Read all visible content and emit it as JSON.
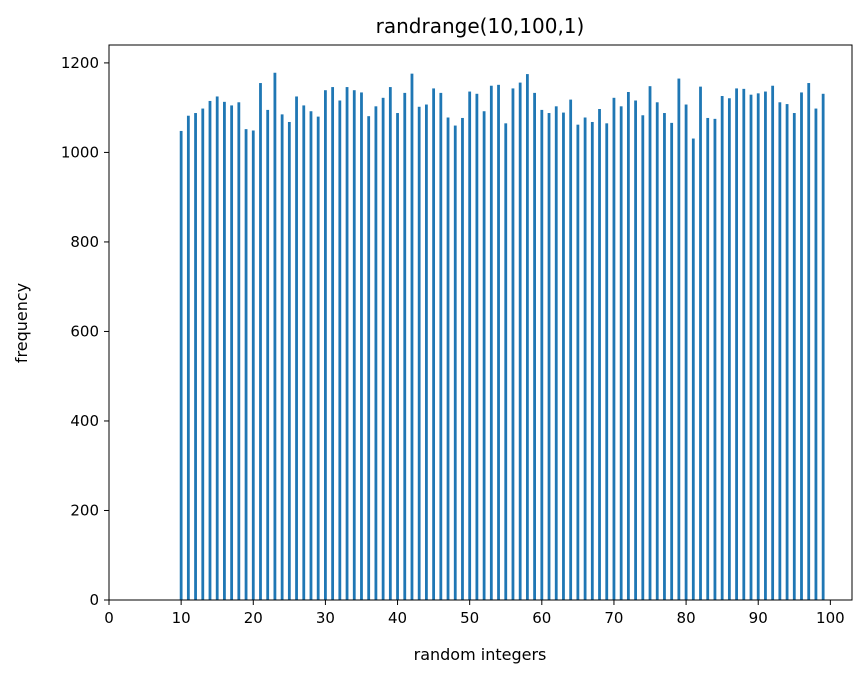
{
  "chart_data": {
    "type": "bar",
    "title": "randrange(10,100,1)",
    "xlabel": "random integers",
    "ylabel": "frequency",
    "xlim": [
      0,
      103
    ],
    "ylim": [
      0,
      1240
    ],
    "xticks": [
      0,
      10,
      20,
      30,
      40,
      50,
      60,
      70,
      80,
      90,
      100
    ],
    "yticks": [
      0,
      200,
      400,
      600,
      800,
      1000,
      1200
    ],
    "grid": false,
    "bar_color": "#1f77b4",
    "x": [
      10,
      11,
      12,
      13,
      14,
      15,
      16,
      17,
      18,
      19,
      20,
      21,
      22,
      23,
      24,
      25,
      26,
      27,
      28,
      29,
      30,
      31,
      32,
      33,
      34,
      35,
      36,
      37,
      38,
      39,
      40,
      41,
      42,
      43,
      44,
      45,
      46,
      47,
      48,
      49,
      50,
      51,
      52,
      53,
      54,
      55,
      56,
      57,
      58,
      59,
      60,
      61,
      62,
      63,
      64,
      65,
      66,
      67,
      68,
      69,
      70,
      71,
      72,
      73,
      74,
      75,
      76,
      77,
      78,
      79,
      80,
      81,
      82,
      83,
      84,
      85,
      86,
      87,
      88,
      89,
      90,
      91,
      92,
      93,
      94,
      95,
      96,
      97,
      98,
      99
    ],
    "values": [
      1048,
      1082,
      1088,
      1098,
      1115,
      1125,
      1113,
      1105,
      1112,
      1052,
      1049,
      1155,
      1095,
      1178,
      1085,
      1068,
      1125,
      1105,
      1092,
      1080,
      1139,
      1146,
      1116,
      1146,
      1139,
      1134,
      1081,
      1103,
      1122,
      1146,
      1088,
      1133,
      1176,
      1102,
      1107,
      1143,
      1133,
      1078,
      1060,
      1077,
      1136,
      1131,
      1092,
      1149,
      1151,
      1065,
      1143,
      1156,
      1175,
      1133,
      1095,
      1088,
      1103,
      1089,
      1118,
      1062,
      1078,
      1068,
      1097,
      1065,
      1122,
      1103,
      1135,
      1116,
      1083,
      1148,
      1112,
      1088,
      1066,
      1165,
      1107,
      1031,
      1147,
      1077,
      1075,
      1126,
      1121,
      1143,
      1142,
      1129,
      1132,
      1136,
      1149,
      1112,
      1108,
      1088,
      1134,
      1155,
      1098,
      1131
    ]
  }
}
